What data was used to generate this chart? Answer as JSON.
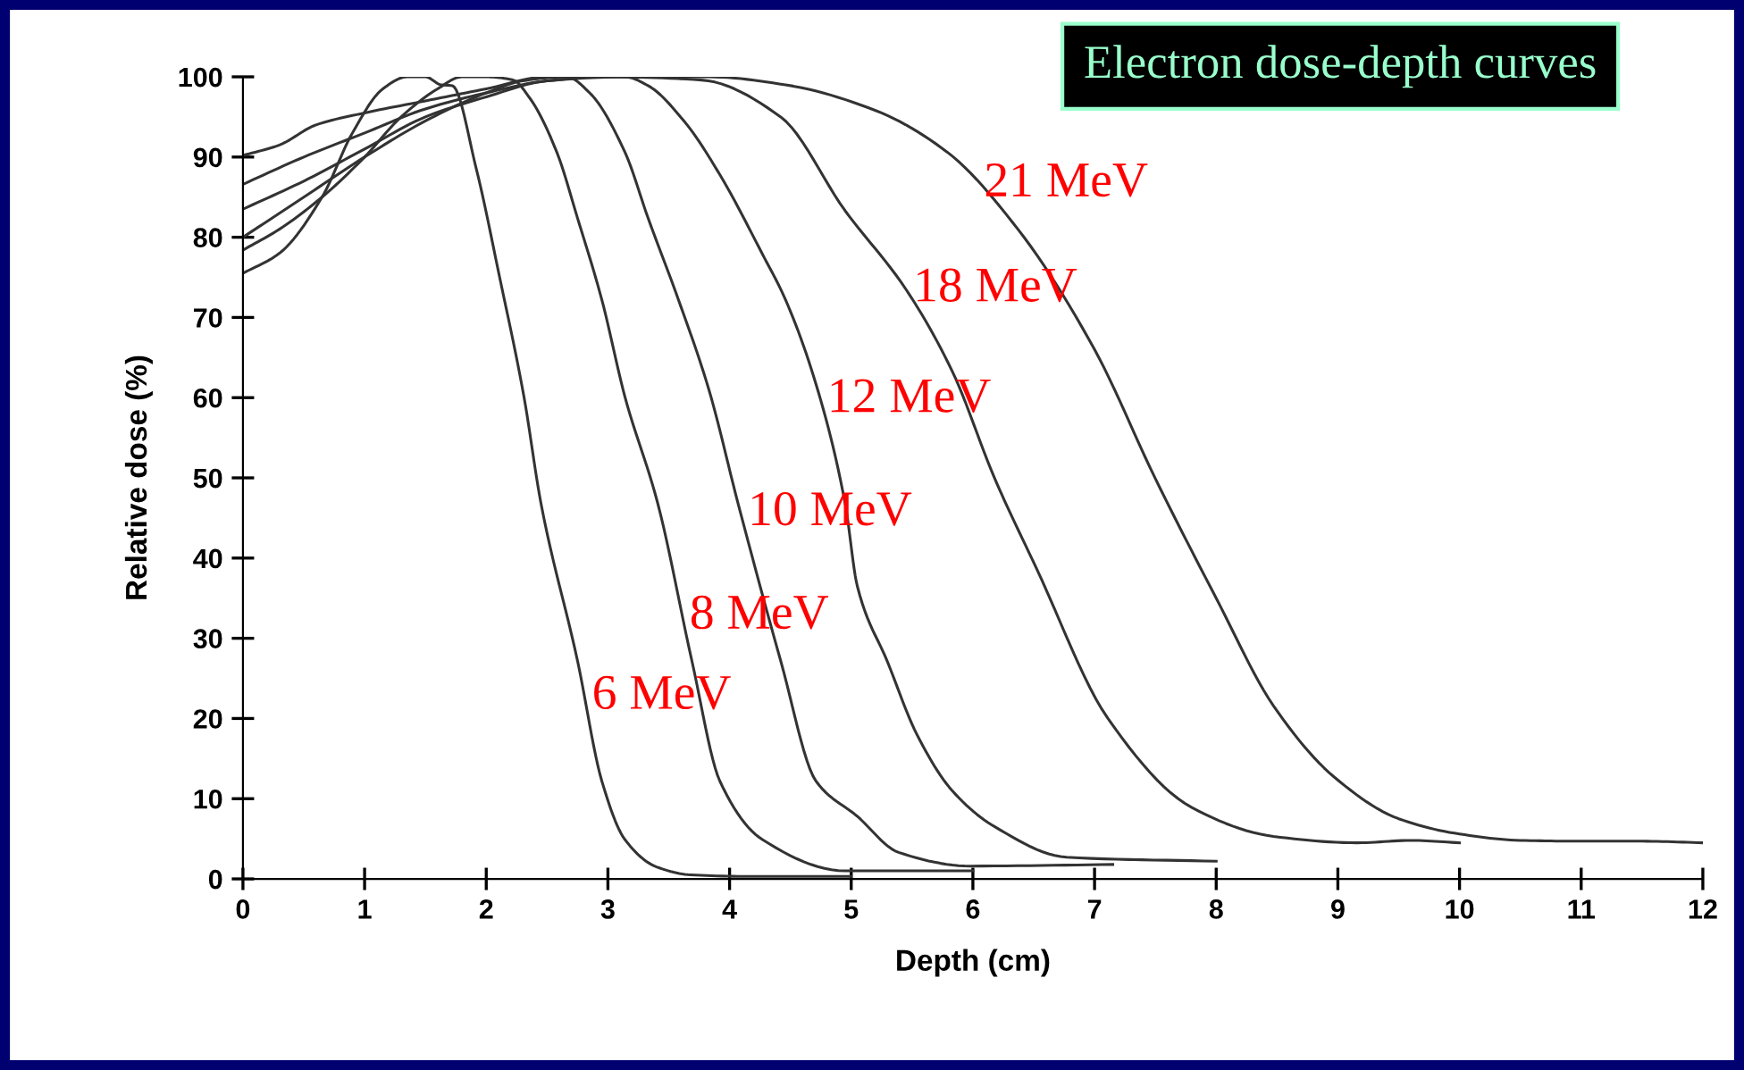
{
  "chart_data": {
    "type": "line",
    "title": "Electron dose-depth curves",
    "xlabel": "Depth (cm)",
    "ylabel": "Relative dose (%)",
    "xlim": [
      0,
      12
    ],
    "xticks": [
      0,
      1,
      2,
      3,
      4,
      5,
      6,
      7,
      8,
      9,
      10,
      11,
      12
    ],
    "ylim": [
      0,
      100
    ],
    "yticks": [
      0,
      10,
      20,
      30,
      40,
      50,
      60,
      70,
      80,
      90,
      100
    ],
    "grid": false,
    "legend": false,
    "marker": "none",
    "line_style": "solid",
    "series": [
      {
        "name": "6 MeV",
        "color": "#333333",
        "x": [
          0,
          0.3,
          0.65,
          0.9,
          1.15,
          1.35,
          1.5,
          1.63,
          1.72,
          1.92,
          2.11,
          2.31,
          2.45,
          2.75,
          2.95,
          3.14,
          3.4,
          3.68,
          4.2,
          5.0
        ],
        "values": [
          75.5,
          78,
          85,
          93,
          98.5,
          100,
          100,
          99,
          98.9,
          88.4,
          75,
          60.1,
          46.8,
          27.2,
          12.2,
          4.9,
          1.5,
          0.5,
          0.3,
          0.3
        ]
      },
      {
        "name": "8 MeV",
        "color": "#333333",
        "x": [
          0,
          0.3,
          0.65,
          1.0,
          1.3,
          1.6,
          1.8,
          2.0,
          2.22,
          2.36,
          2.58,
          2.75,
          2.95,
          3.14,
          3.41,
          3.69,
          3.92,
          4.27,
          4.95,
          6.0
        ],
        "values": [
          78.4,
          81,
          85,
          90,
          95,
          98.5,
          100,
          100,
          99.6,
          97.3,
          90.6,
          82.4,
          72.2,
          60.1,
          46.8,
          27.2,
          12.2,
          4.9,
          1,
          1
        ]
      },
      {
        "name": "10 MeV",
        "color": "#333333",
        "x": [
          0,
          0.5,
          1,
          1.5,
          2,
          2.3,
          2.66,
          2.85,
          3.14,
          3.33,
          3.58,
          3.83,
          4.07,
          4.42,
          4.71,
          5.05,
          5.39,
          5.98,
          7.15
        ],
        "values": [
          80,
          85,
          90,
          94.5,
          98,
          99.5,
          100,
          98,
          90.6,
          82.4,
          72.2,
          61,
          46.8,
          27.2,
          12.2,
          7.8,
          3.3,
          1.6,
          1.8
        ]
      },
      {
        "name": "12 MeV",
        "color": "#333333",
        "x": [
          0,
          0.5,
          1,
          1.5,
          2,
          2.5,
          3.14,
          3.33,
          3.63,
          3.92,
          4.27,
          4.46,
          4.71,
          4.95,
          5.05,
          5.3,
          5.54,
          5.83,
          6.18,
          6.77,
          8.0
        ],
        "values": [
          83.5,
          87,
          91,
          95,
          97.5,
          99.5,
          100,
          98.9,
          94.4,
          87.8,
          77.9,
          72.2,
          61.7,
          46.8,
          36.5,
          27,
          18,
          11,
          6.5,
          2.7,
          2.2
        ]
      },
      {
        "name": "18 MeV",
        "color": "#333333",
        "x": [
          0,
          0.5,
          1,
          1.5,
          2,
          2.5,
          3,
          3.77,
          4.42,
          4.95,
          5.45,
          5.83,
          6.18,
          6.52,
          7.11,
          7.8,
          8.47,
          9.16,
          9.6,
          10
        ],
        "values": [
          86.6,
          90,
          93,
          96,
          98,
          99.5,
          100,
          99.6,
          95,
          83.3,
          73.5,
          63.3,
          49.9,
          38.8,
          20,
          8.9,
          5.3,
          4.5,
          4.8,
          4.5
        ]
      },
      {
        "name": "21 MeV",
        "color": "#333333",
        "x": [
          0,
          0.3,
          0.6,
          1,
          1.5,
          2,
          2.5,
          3.83,
          4.46,
          5.2,
          5.79,
          6.37,
          7.0,
          7.5,
          8.0,
          8.47,
          8.97,
          9.5,
          10,
          10.5,
          11,
          11.5,
          12
        ],
        "values": [
          90.2,
          91.5,
          94,
          95.5,
          97,
          98.5,
          100,
          100,
          99,
          95.8,
          90.6,
          81,
          66,
          49.9,
          35,
          21.6,
          12.7,
          7.5,
          5.6,
          4.8,
          4.7,
          4.7,
          4.5
        ]
      }
    ]
  }
}
